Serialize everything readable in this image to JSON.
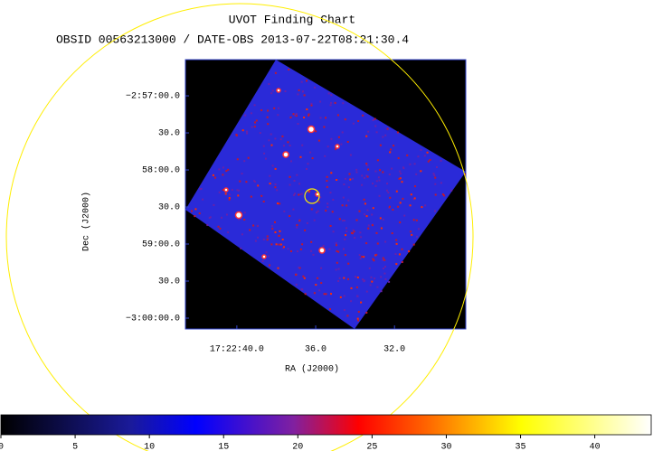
{
  "chart_data": {
    "type": "image",
    "title": "UVOT Finding Chart",
    "subtitle": "OBSID 00563213000 / DATE-OBS 2013-07-22T08:21:30.4",
    "xlabel": "RA (J2000)",
    "ylabel": "Dec (J2000)",
    "xlim": [
      260.6776,
      260.6182
    ],
    "xticks": [
      {
        "value": 260.6667,
        "label": "17:22:40.0"
      },
      {
        "value": 260.65,
        "label": "36.0"
      },
      {
        "value": 260.6333,
        "label": "32.0"
      }
    ],
    "ylim": [
      -3.00244,
      -2.94186
    ],
    "yticks": [
      {
        "value": -2.95,
        "label": "−2:57:00.0"
      },
      {
        "value": -2.958333,
        "label": "30.0"
      },
      {
        "value": -2.966667,
        "label": "58:00.0"
      },
      {
        "value": -2.975,
        "label": "30.0"
      },
      {
        "value": -2.983333,
        "label": "59:00.0"
      },
      {
        "value": -2.991667,
        "label": "30.0"
      },
      {
        "value": -3.0,
        "label": "−3:00:00.0"
      }
    ],
    "colorbar": {
      "lim": [
        0,
        43.8
      ],
      "ticks": [
        0,
        5,
        10,
        15,
        20,
        25,
        30,
        35,
        40
      ]
    }
  }
}
